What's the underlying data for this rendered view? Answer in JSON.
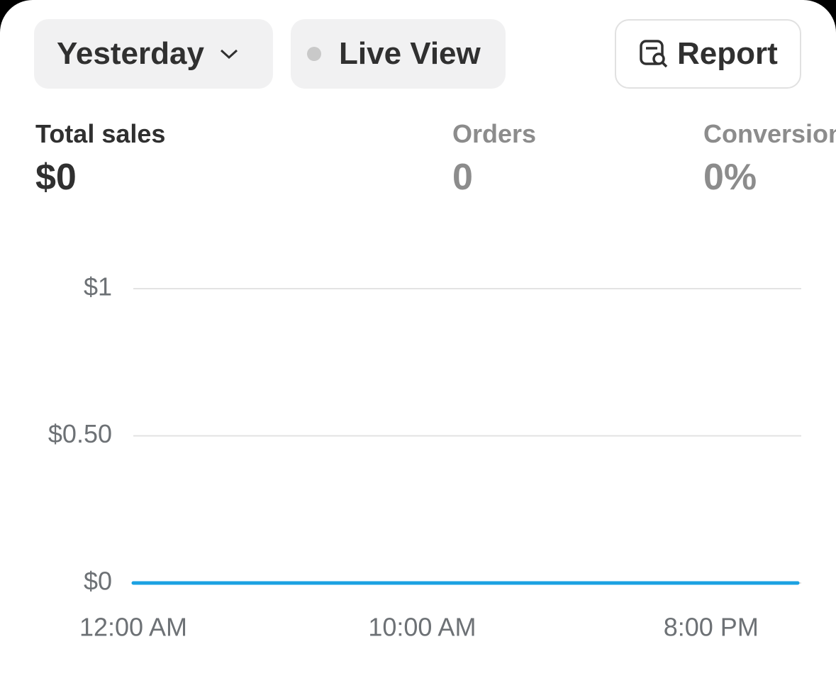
{
  "toolbar": {
    "period": "Yesterday",
    "live": "Live View",
    "report": "Report"
  },
  "metrics": [
    {
      "label": "Total sales",
      "value": "$0"
    },
    {
      "label": "Orders",
      "value": "0"
    },
    {
      "label": "Conversion",
      "value": "0%"
    }
  ],
  "chart_data": {
    "type": "line",
    "x": [
      0,
      1,
      2,
      3,
      4,
      5,
      6,
      7,
      8,
      9,
      10,
      11,
      12,
      13,
      14,
      15,
      16,
      17,
      18,
      19,
      20,
      21,
      22,
      23
    ],
    "values": [
      0,
      0,
      0,
      0,
      0,
      0,
      0,
      0,
      0,
      0,
      0,
      0,
      0,
      0,
      0,
      0,
      0,
      0,
      0,
      0,
      0,
      0,
      0,
      0
    ],
    "color": "#1ba1e2",
    "xlim": [
      0,
      23
    ],
    "xticks": [
      {
        "value": 0,
        "label": "12:00 AM"
      },
      {
        "value": 10,
        "label": "10:00 AM"
      },
      {
        "value": 20,
        "label": "8:00 PM"
      }
    ],
    "ylim": [
      0,
      1
    ],
    "yticks": [
      {
        "value": 0,
        "label": "$0"
      },
      {
        "value": 0.5,
        "label": "$0.50"
      },
      {
        "value": 1,
        "label": "$1"
      }
    ],
    "grid": true
  }
}
